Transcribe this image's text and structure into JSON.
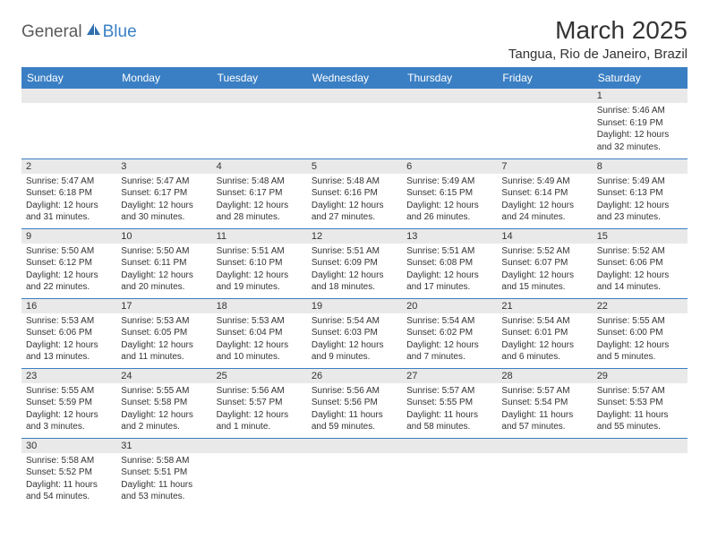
{
  "brand": {
    "part1": "General",
    "part2": "Blue",
    "icon_color": "#2f6fb0"
  },
  "title": "March 2025",
  "location": "Tangua, Rio de Janeiro, Brazil",
  "colors": {
    "header_bg": "#3a7fc4",
    "header_text": "#ffffff",
    "cell_border": "#3a7fc4",
    "daynum_bg": "#e9e9e9",
    "text": "#333333",
    "background": "#ffffff"
  },
  "typography": {
    "title_fontsize": 28,
    "location_fontsize": 15,
    "header_fontsize": 12,
    "daynum_fontsize": 11,
    "body_fontsize": 10
  },
  "day_headers": [
    "Sunday",
    "Monday",
    "Tuesday",
    "Wednesday",
    "Thursday",
    "Friday",
    "Saturday"
  ],
  "weeks": [
    [
      {
        "n": "",
        "sunrise": "",
        "sunset": "",
        "daylight": ""
      },
      {
        "n": "",
        "sunrise": "",
        "sunset": "",
        "daylight": ""
      },
      {
        "n": "",
        "sunrise": "",
        "sunset": "",
        "daylight": ""
      },
      {
        "n": "",
        "sunrise": "",
        "sunset": "",
        "daylight": ""
      },
      {
        "n": "",
        "sunrise": "",
        "sunset": "",
        "daylight": ""
      },
      {
        "n": "",
        "sunrise": "",
        "sunset": "",
        "daylight": ""
      },
      {
        "n": "1",
        "sunrise": "Sunrise: 5:46 AM",
        "sunset": "Sunset: 6:19 PM",
        "daylight": "Daylight: 12 hours and 32 minutes."
      }
    ],
    [
      {
        "n": "2",
        "sunrise": "Sunrise: 5:47 AM",
        "sunset": "Sunset: 6:18 PM",
        "daylight": "Daylight: 12 hours and 31 minutes."
      },
      {
        "n": "3",
        "sunrise": "Sunrise: 5:47 AM",
        "sunset": "Sunset: 6:17 PM",
        "daylight": "Daylight: 12 hours and 30 minutes."
      },
      {
        "n": "4",
        "sunrise": "Sunrise: 5:48 AM",
        "sunset": "Sunset: 6:17 PM",
        "daylight": "Daylight: 12 hours and 28 minutes."
      },
      {
        "n": "5",
        "sunrise": "Sunrise: 5:48 AM",
        "sunset": "Sunset: 6:16 PM",
        "daylight": "Daylight: 12 hours and 27 minutes."
      },
      {
        "n": "6",
        "sunrise": "Sunrise: 5:49 AM",
        "sunset": "Sunset: 6:15 PM",
        "daylight": "Daylight: 12 hours and 26 minutes."
      },
      {
        "n": "7",
        "sunrise": "Sunrise: 5:49 AM",
        "sunset": "Sunset: 6:14 PM",
        "daylight": "Daylight: 12 hours and 24 minutes."
      },
      {
        "n": "8",
        "sunrise": "Sunrise: 5:49 AM",
        "sunset": "Sunset: 6:13 PM",
        "daylight": "Daylight: 12 hours and 23 minutes."
      }
    ],
    [
      {
        "n": "9",
        "sunrise": "Sunrise: 5:50 AM",
        "sunset": "Sunset: 6:12 PM",
        "daylight": "Daylight: 12 hours and 22 minutes."
      },
      {
        "n": "10",
        "sunrise": "Sunrise: 5:50 AM",
        "sunset": "Sunset: 6:11 PM",
        "daylight": "Daylight: 12 hours and 20 minutes."
      },
      {
        "n": "11",
        "sunrise": "Sunrise: 5:51 AM",
        "sunset": "Sunset: 6:10 PM",
        "daylight": "Daylight: 12 hours and 19 minutes."
      },
      {
        "n": "12",
        "sunrise": "Sunrise: 5:51 AM",
        "sunset": "Sunset: 6:09 PM",
        "daylight": "Daylight: 12 hours and 18 minutes."
      },
      {
        "n": "13",
        "sunrise": "Sunrise: 5:51 AM",
        "sunset": "Sunset: 6:08 PM",
        "daylight": "Daylight: 12 hours and 17 minutes."
      },
      {
        "n": "14",
        "sunrise": "Sunrise: 5:52 AM",
        "sunset": "Sunset: 6:07 PM",
        "daylight": "Daylight: 12 hours and 15 minutes."
      },
      {
        "n": "15",
        "sunrise": "Sunrise: 5:52 AM",
        "sunset": "Sunset: 6:06 PM",
        "daylight": "Daylight: 12 hours and 14 minutes."
      }
    ],
    [
      {
        "n": "16",
        "sunrise": "Sunrise: 5:53 AM",
        "sunset": "Sunset: 6:06 PM",
        "daylight": "Daylight: 12 hours and 13 minutes."
      },
      {
        "n": "17",
        "sunrise": "Sunrise: 5:53 AM",
        "sunset": "Sunset: 6:05 PM",
        "daylight": "Daylight: 12 hours and 11 minutes."
      },
      {
        "n": "18",
        "sunrise": "Sunrise: 5:53 AM",
        "sunset": "Sunset: 6:04 PM",
        "daylight": "Daylight: 12 hours and 10 minutes."
      },
      {
        "n": "19",
        "sunrise": "Sunrise: 5:54 AM",
        "sunset": "Sunset: 6:03 PM",
        "daylight": "Daylight: 12 hours and 9 minutes."
      },
      {
        "n": "20",
        "sunrise": "Sunrise: 5:54 AM",
        "sunset": "Sunset: 6:02 PM",
        "daylight": "Daylight: 12 hours and 7 minutes."
      },
      {
        "n": "21",
        "sunrise": "Sunrise: 5:54 AM",
        "sunset": "Sunset: 6:01 PM",
        "daylight": "Daylight: 12 hours and 6 minutes."
      },
      {
        "n": "22",
        "sunrise": "Sunrise: 5:55 AM",
        "sunset": "Sunset: 6:00 PM",
        "daylight": "Daylight: 12 hours and 5 minutes."
      }
    ],
    [
      {
        "n": "23",
        "sunrise": "Sunrise: 5:55 AM",
        "sunset": "Sunset: 5:59 PM",
        "daylight": "Daylight: 12 hours and 3 minutes."
      },
      {
        "n": "24",
        "sunrise": "Sunrise: 5:55 AM",
        "sunset": "Sunset: 5:58 PM",
        "daylight": "Daylight: 12 hours and 2 minutes."
      },
      {
        "n": "25",
        "sunrise": "Sunrise: 5:56 AM",
        "sunset": "Sunset: 5:57 PM",
        "daylight": "Daylight: 12 hours and 1 minute."
      },
      {
        "n": "26",
        "sunrise": "Sunrise: 5:56 AM",
        "sunset": "Sunset: 5:56 PM",
        "daylight": "Daylight: 11 hours and 59 minutes."
      },
      {
        "n": "27",
        "sunrise": "Sunrise: 5:57 AM",
        "sunset": "Sunset: 5:55 PM",
        "daylight": "Daylight: 11 hours and 58 minutes."
      },
      {
        "n": "28",
        "sunrise": "Sunrise: 5:57 AM",
        "sunset": "Sunset: 5:54 PM",
        "daylight": "Daylight: 11 hours and 57 minutes."
      },
      {
        "n": "29",
        "sunrise": "Sunrise: 5:57 AM",
        "sunset": "Sunset: 5:53 PM",
        "daylight": "Daylight: 11 hours and 55 minutes."
      }
    ],
    [
      {
        "n": "30",
        "sunrise": "Sunrise: 5:58 AM",
        "sunset": "Sunset: 5:52 PM",
        "daylight": "Daylight: 11 hours and 54 minutes."
      },
      {
        "n": "31",
        "sunrise": "Sunrise: 5:58 AM",
        "sunset": "Sunset: 5:51 PM",
        "daylight": "Daylight: 11 hours and 53 minutes."
      },
      {
        "n": "",
        "sunrise": "",
        "sunset": "",
        "daylight": ""
      },
      {
        "n": "",
        "sunrise": "",
        "sunset": "",
        "daylight": ""
      },
      {
        "n": "",
        "sunrise": "",
        "sunset": "",
        "daylight": ""
      },
      {
        "n": "",
        "sunrise": "",
        "sunset": "",
        "daylight": ""
      },
      {
        "n": "",
        "sunrise": "",
        "sunset": "",
        "daylight": ""
      }
    ]
  ]
}
